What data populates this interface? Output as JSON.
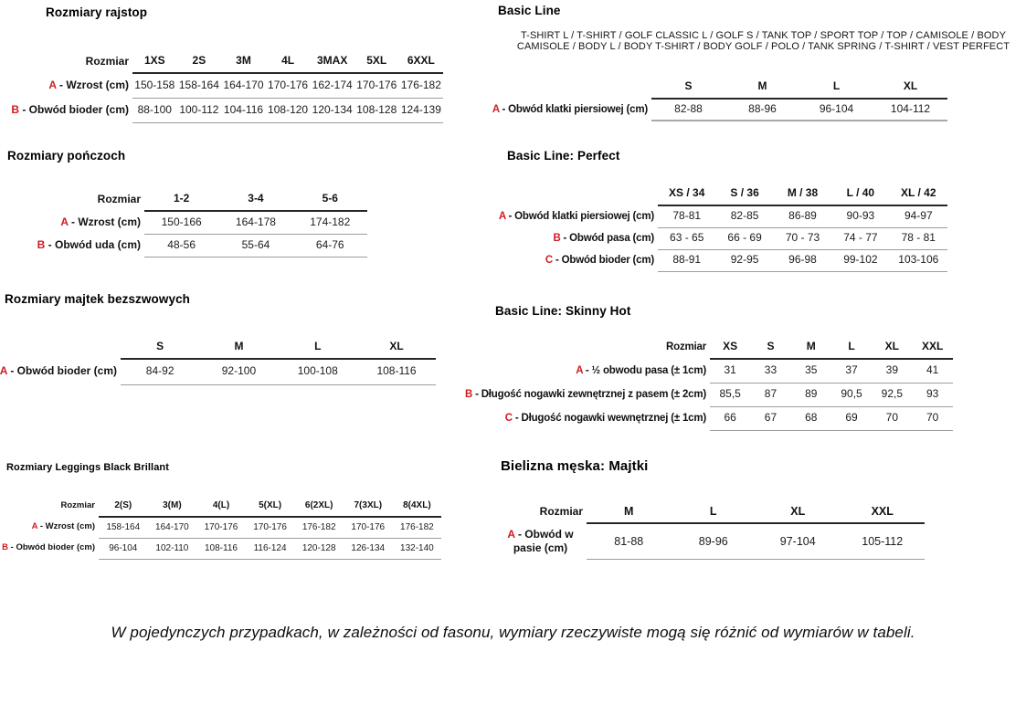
{
  "page": {
    "background": "#ffffff",
    "text_color": "#1c1c1c",
    "accent_red": "#cf1b20",
    "footnote": "W pojedynczych przypadkach, w zależności od fasonu, wymiary rzeczywiste mogą się różnić od wymiarów w tabeli."
  },
  "tables": [
    {
      "title": "Rozmiary rajstop",
      "size_header": "Rozmiar",
      "columns": [
        "1XS",
        "2S",
        "3M",
        "4L",
        "3MAX",
        "5XL",
        "6XXL"
      ],
      "rows": [
        {
          "letter": "A",
          "label": " - Wzrost (cm)",
          "values": [
            "150-158",
            "158-164",
            "164-170",
            "170-176",
            "162-174",
            "170-176",
            "176-182"
          ]
        },
        {
          "letter": "B",
          "label": " - Obwód bioder (cm)",
          "values": [
            "88-100",
            "100-112",
            "104-116",
            "108-120",
            "120-134",
            "108-128",
            "124-139"
          ]
        }
      ]
    },
    {
      "title": "Rozmiary pończoch",
      "size_header": "Rozmiar",
      "columns": [
        "1-2",
        "3-4",
        "5-6"
      ],
      "rows": [
        {
          "letter": "A",
          "label": " - Wzrost (cm)",
          "values": [
            "150-166",
            "164-178",
            "174-182"
          ]
        },
        {
          "letter": "B",
          "label": " - Obwód uda (cm)",
          "values": [
            "48-56",
            "55-64",
            "64-76"
          ]
        }
      ]
    },
    {
      "title": "Rozmiary majtek bezszwowych",
      "size_header": "",
      "columns": [
        "S",
        "M",
        "L",
        "XL"
      ],
      "rows": [
        {
          "letter": "A",
          "label": " - Obwód bioder (cm)",
          "values": [
            "84-92",
            "92-100",
            "100-108",
            "108-116"
          ]
        }
      ]
    },
    {
      "title": "Rozmiary Leggings Black Brillant",
      "size_header": "Rozmiar",
      "columns": [
        "2(S)",
        "3(M)",
        "4(L)",
        "5(XL)",
        "6(2XL)",
        "7(3XL)",
        "8(4XL)"
      ],
      "rows": [
        {
          "letter": "A",
          "label": " - Wzrost (cm)",
          "values": [
            "158-164",
            "164-170",
            "170-176",
            "170-176",
            "176-182",
            "170-176",
            "176-182"
          ]
        },
        {
          "letter": "B",
          "label": " - Obwód bioder (cm)",
          "values": [
            "96-104",
            "102-110",
            "108-116",
            "116-124",
            "120-128",
            "126-134",
            "132-140"
          ]
        }
      ]
    },
    {
      "title": "Basic Line",
      "subtitle": "T-SHIRT L / T-SHIRT / GOLF CLASSIC L / GOLF S / TANK TOP / SPORT TOP / TOP / CAMISOLE / BODY CAMISOLE / BODY L / BODY T-SHIRT / BODY GOLF / POLO / TANK SPRING / T-SHIRT / VEST PERFECT",
      "size_header": "",
      "columns": [
        "S",
        "M",
        "L",
        "XL"
      ],
      "rows": [
        {
          "letter": "A",
          "label": " - Obwód klatki piersiowej (cm)",
          "values": [
            "82-88",
            "88-96",
            "96-104",
            "104-112"
          ]
        }
      ]
    },
    {
      "title": "Basic Line: Perfect",
      "size_header": "",
      "columns": [
        "XS / 34",
        "S / 36",
        "M / 38",
        "L / 40",
        "XL / 42"
      ],
      "rows": [
        {
          "letter": "A",
          "label": " - Obwód klatki piersiowej (cm)",
          "values": [
            "78-81",
            "82-85",
            "86-89",
            "90-93",
            "94-97"
          ]
        },
        {
          "letter": "B",
          "label": " - Obwód pasa (cm)",
          "values": [
            "63 - 65",
            "66 - 69",
            "70 - 73",
            "74 - 77",
            "78 - 81"
          ]
        },
        {
          "letter": "C",
          "label": " - Obwód bioder (cm)",
          "values": [
            "88-91",
            "92-95",
            "96-98",
            "99-102",
            "103-106"
          ]
        }
      ]
    },
    {
      "title": "Basic Line: Skinny Hot",
      "size_header": "Rozmiar",
      "columns": [
        "XS",
        "S",
        "M",
        "L",
        "XL",
        "XXL"
      ],
      "rows": [
        {
          "letter": "A",
          "label": " - ½ obwodu pasa (± 1cm)",
          "values": [
            "31",
            "33",
            "35",
            "37",
            "39",
            "41"
          ]
        },
        {
          "letter": "B",
          "label": " - Długość nogawki zewnętrznej z pasem (± 2cm)",
          "values": [
            "85,5",
            "87",
            "89",
            "90,5",
            "92,5",
            "93"
          ]
        },
        {
          "letter": "C",
          "label": " - Długość nogawki wewnętrznej (± 1cm)",
          "values": [
            "66",
            "67",
            "68",
            "69",
            "70",
            "70"
          ]
        }
      ]
    },
    {
      "title": "Bielizna męska: Majtki",
      "size_header": "Rozmiar",
      "columns": [
        "M",
        "L",
        "XL",
        "XXL"
      ],
      "rows": [
        {
          "letter": "A",
          "label": " - Obwód w pasie (cm)",
          "values": [
            "81-88",
            "89-96",
            "97-104",
            "105-112"
          ]
        }
      ]
    }
  ]
}
